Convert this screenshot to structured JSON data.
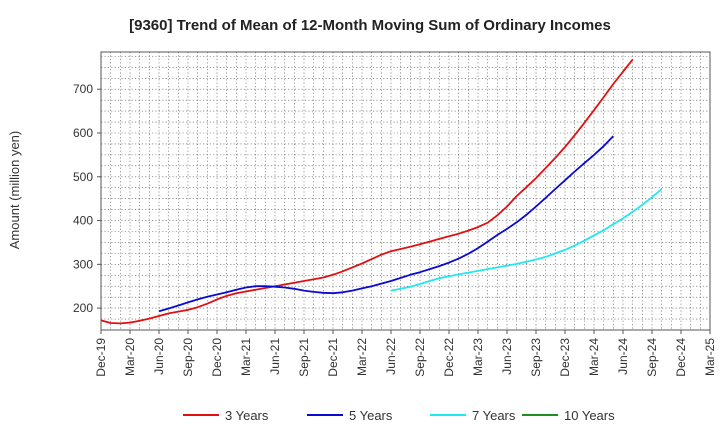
{
  "chart_data": {
    "type": "line",
    "title": "[9360]  Trend of Mean of 12-Month Moving Sum of Ordinary Incomes",
    "xlabel": "",
    "ylabel": "Amount (million yen)",
    "ylim": [
      150,
      785
    ],
    "yticks": [
      200,
      300,
      400,
      500,
      600,
      700
    ],
    "grid": true,
    "legend_position": "bottom",
    "x_tick_labels": [
      "Dec-19",
      "Mar-20",
      "Jun-20",
      "Sep-20",
      "Dec-20",
      "Mar-21",
      "Jun-21",
      "Sep-21",
      "Dec-21",
      "Mar-22",
      "Jun-22",
      "Sep-22",
      "Dec-22",
      "Mar-23",
      "Jun-23",
      "Sep-23",
      "Dec-23",
      "Mar-24",
      "Jun-24",
      "Sep-24",
      "Dec-24",
      "Mar-25"
    ],
    "series": [
      {
        "name": "3 Years",
        "color": "#e01010",
        "start_month_index": 0,
        "values": [
          172,
          166,
          165,
          167,
          171,
          176,
          182,
          188,
          192,
          196,
          202,
          210,
          220,
          228,
          234,
          238,
          242,
          246,
          250,
          254,
          258,
          262,
          266,
          270,
          276,
          284,
          293,
          302,
          312,
          322,
          330,
          335,
          340,
          346,
          352,
          358,
          364,
          370,
          377,
          385,
          395,
          412,
          432,
          456,
          476,
          497,
          520,
          543,
          568,
          595,
          623,
          652,
          682,
          712,
          740,
          768
        ]
      },
      {
        "name": "5 Years",
        "color": "#0a0ad0",
        "start_month_index": 6,
        "values": [
          193,
          199,
          206,
          213,
          220,
          226,
          231,
          236,
          242,
          247,
          250,
          250,
          249,
          247,
          244,
          240,
          237,
          235,
          234,
          236,
          240,
          245,
          250,
          256,
          262,
          269,
          276,
          282,
          289,
          296,
          304,
          313,
          324,
          337,
          352,
          367,
          381,
          396,
          413,
          432,
          452,
          472,
          492,
          512,
          531,
          550,
          570,
          593
        ]
      },
      {
        "name": "7 Years",
        "color": "#20e8f0",
        "start_month_index": 30,
        "values": [
          240,
          244,
          249,
          255,
          262,
          268,
          273,
          277,
          281,
          285,
          289,
          293,
          297,
          301,
          306,
          311,
          317,
          325,
          333,
          343,
          354,
          366,
          378,
          392,
          405,
          420,
          436,
          453,
          472
        ]
      },
      {
        "name": "10 Years",
        "color": "#1f8f1f",
        "start_month_index": 0,
        "values": []
      }
    ]
  }
}
